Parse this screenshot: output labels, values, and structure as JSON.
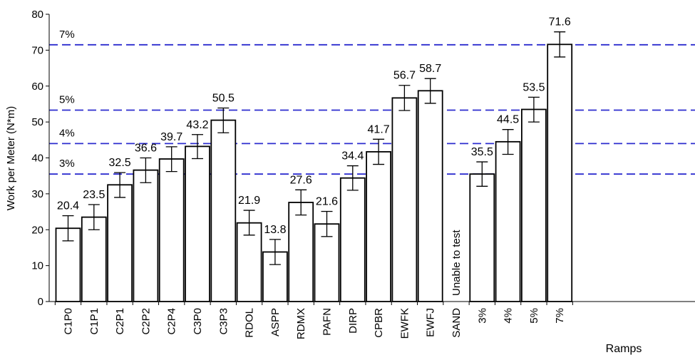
{
  "chart_data": {
    "type": "bar",
    "ylabel": "Work per Meter (N*m)",
    "ylim": [
      0,
      80
    ],
    "yticks": [
      0,
      10,
      20,
      30,
      40,
      50,
      60,
      70,
      80
    ],
    "ytick_labels": [
      "0",
      "10",
      "20",
      "30",
      "40",
      "50",
      "60",
      "70",
      "80"
    ],
    "categories": [
      "C1P0",
      "C1P1",
      "C2P1",
      "C2P2",
      "C2P4",
      "C3P0",
      "C3P3",
      "RDOL",
      "ASPP",
      "RDMX",
      "PAFN",
      "DIRP",
      "CPBR",
      "EWFK",
      "EWFJ",
      "SAND",
      "3%",
      "4%",
      "5%",
      "7%"
    ],
    "bars": [
      {
        "category": "C1P0",
        "value": 20.4,
        "label": "20.4",
        "err_low": 16.9,
        "err_high": 23.9
      },
      {
        "category": "C1P1",
        "value": 23.5,
        "label": "23.5",
        "err_low": 20.0,
        "err_high": 27.0
      },
      {
        "category": "C2P1",
        "value": 32.5,
        "label": "32.5",
        "err_low": 29.0,
        "err_high": 35.9
      },
      {
        "category": "C2P2",
        "value": 36.6,
        "label": "36.6",
        "err_low": 33.1,
        "err_high": 40.0
      },
      {
        "category": "C2P4",
        "value": 39.7,
        "label": "39.7",
        "err_low": 36.2,
        "err_high": 43.1
      },
      {
        "category": "C3P0",
        "value": 43.2,
        "label": "43.2",
        "err_low": 39.8,
        "err_high": 46.5
      },
      {
        "category": "C3P3",
        "value": 50.5,
        "label": "50.5",
        "err_low": 47.0,
        "err_high": 53.9
      },
      {
        "category": "RDOL",
        "value": 21.9,
        "label": "21.9",
        "err_low": 18.5,
        "err_high": 25.4
      },
      {
        "category": "ASPP",
        "value": 13.8,
        "label": "13.8",
        "err_low": 10.3,
        "err_high": 17.3
      },
      {
        "category": "RDMX",
        "value": 27.6,
        "label": "27.6",
        "err_low": 24.1,
        "err_high": 31.1
      },
      {
        "category": "PAFN",
        "value": 21.6,
        "label": "21.6",
        "err_low": 18.1,
        "err_high": 25.1
      },
      {
        "category": "DIRP",
        "value": 34.4,
        "label": "34.4",
        "err_low": 31.0,
        "err_high": 37.8
      },
      {
        "category": "CPBR",
        "value": 41.7,
        "label": "41.7",
        "err_low": 38.2,
        "err_high": 45.2
      },
      {
        "category": "EWFK",
        "value": 56.7,
        "label": "56.7",
        "err_low": 53.2,
        "err_high": 60.2
      },
      {
        "category": "EWFJ",
        "value": 58.7,
        "label": "58.7",
        "err_low": 55.2,
        "err_high": 62.1
      },
      {
        "category": "SAND",
        "value": null,
        "label": "",
        "note": "Unable to test"
      },
      {
        "category": "3%",
        "value": 35.5,
        "label": "35.5",
        "err_low": 32.1,
        "err_high": 38.9
      },
      {
        "category": "4%",
        "value": 44.5,
        "label": "44.5",
        "err_low": 41.0,
        "err_high": 47.9
      },
      {
        "category": "5%",
        "value": 53.5,
        "label": "53.5",
        "err_low": 50.0,
        "err_high": 56.9
      },
      {
        "category": "7%",
        "value": 71.6,
        "label": "71.6",
        "err_low": 68.1,
        "err_high": 75.1
      }
    ],
    "reference_lines": [
      {
        "label": "3%",
        "value": 35.5,
        "color": "#2c2ccf",
        "style": "dashed"
      },
      {
        "label": "4%",
        "value": 44.0,
        "color": "#2c2ccf",
        "style": "dashed"
      },
      {
        "label": "5%",
        "value": 53.3,
        "color": "#2c2ccf",
        "style": "dashed"
      },
      {
        "label": "7%",
        "value": 71.5,
        "color": "#2c2ccf",
        "style": "dashed"
      }
    ],
    "group_label": "Ramps",
    "bar_fill": "#ffffff",
    "bar_stroke": "#000000",
    "grid": false,
    "legend": "none"
  }
}
